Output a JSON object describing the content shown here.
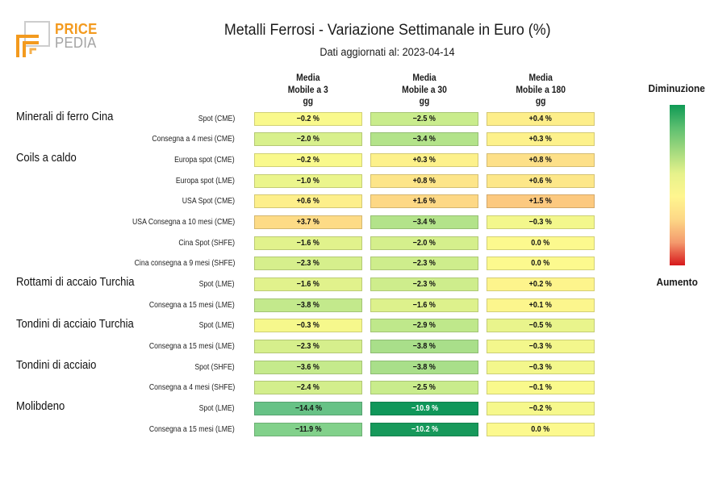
{
  "logo": {
    "line1": "PRICE",
    "line2": "PEDIA"
  },
  "chart_data": {
    "type": "heatmap",
    "title": "Metalli Ferrosi - Variazione Settimanale in Euro (%)",
    "subtitle": "Dati aggiornati al: 2023-04-14",
    "columns": [
      "Media\nMobile a 3\ngg",
      "Media\nMobile a 30\ngg",
      "Media\nMobile a 180\ngg"
    ],
    "legend": {
      "position": "right",
      "top_label": "Diminuzione",
      "bottom_label": "Aumento",
      "gradient": [
        "#0f9a55",
        "#5dbf70",
        "#a2d97e",
        "#e6f28b",
        "#fff68f",
        "#fdd786",
        "#f49a6d",
        "#d7191c"
      ]
    },
    "groups": [
      {
        "name": "Minerali di ferro Cina",
        "rows": [
          {
            "label": "Spot (CME)",
            "cells": [
              {
                "label": "−0.2 %",
                "value": -0.2,
                "color": "#f9f98c"
              },
              {
                "label": "−2.5 %",
                "value": -2.5,
                "color": "#c9ec8c"
              },
              {
                "label": "+0.4 %",
                "value": 0.4,
                "color": "#fdee8a"
              }
            ]
          },
          {
            "label": "Consegna a 4 mesi (CME)",
            "cells": [
              {
                "label": "−2.0 %",
                "value": -2.0,
                "color": "#d8f08c"
              },
              {
                "label": "−3.4 %",
                "value": -3.4,
                "color": "#b3e38a"
              },
              {
                "label": "+0.3 %",
                "value": 0.3,
                "color": "#fdf18b"
              }
            ]
          }
        ]
      },
      {
        "name": "Coils a caldo",
        "rows": [
          {
            "label": "Europa spot (CME)",
            "cells": [
              {
                "label": "−0.2 %",
                "value": -0.2,
                "color": "#f9f98c"
              },
              {
                "label": "+0.3 %",
                "value": 0.3,
                "color": "#fdf18b"
              },
              {
                "label": "+0.8 %",
                "value": 0.8,
                "color": "#fde088"
              }
            ]
          },
          {
            "label": "Europa spot (LME)",
            "cells": [
              {
                "label": "−1.0 %",
                "value": -1.0,
                "color": "#ebf58c"
              },
              {
                "label": "+0.8 %",
                "value": 0.8,
                "color": "#fde589"
              },
              {
                "label": "+0.6 %",
                "value": 0.6,
                "color": "#fde789"
              }
            ]
          },
          {
            "label": "USA Spot (CME)",
            "cells": [
              {
                "label": "+0.6 %",
                "value": 0.6,
                "color": "#fdef8b"
              },
              {
                "label": "+1.6 %",
                "value": 1.6,
                "color": "#fdd885"
              },
              {
                "label": "+1.5 %",
                "value": 1.5,
                "color": "#fcc97f"
              }
            ]
          },
          {
            "label": "USA Consegna a 10 mesi (CME)",
            "cells": [
              {
                "label": "+3.7 %",
                "value": 3.7,
                "color": "#fddb86"
              },
              {
                "label": "−3.4 %",
                "value": -3.4,
                "color": "#b3e38a"
              },
              {
                "label": "−0.3 %",
                "value": -0.3,
                "color": "#f3f78c"
              }
            ]
          },
          {
            "label": "Cina Spot (SHFE)",
            "cells": [
              {
                "label": "−1.6 %",
                "value": -1.6,
                "color": "#e1f28c"
              },
              {
                "label": "−2.0 %",
                "value": -2.0,
                "color": "#d5ef8c"
              },
              {
                "label": "0.0 %",
                "value": 0.0,
                "color": "#fcf98e"
              }
            ]
          },
          {
            "label": "Cina consegna a 9 mesi (SHFE)",
            "cells": [
              {
                "label": "−2.3 %",
                "value": -2.3,
                "color": "#d6ef8c"
              },
              {
                "label": "−2.3 %",
                "value": -2.3,
                "color": "#ceed8c"
              },
              {
                "label": "0.0 %",
                "value": 0.0,
                "color": "#fcf98e"
              }
            ]
          }
        ]
      },
      {
        "name": "Rottami di accaio Turchia",
        "rows": [
          {
            "label": "Spot (LME)",
            "cells": [
              {
                "label": "−1.6 %",
                "value": -1.6,
                "color": "#e1f28c"
              },
              {
                "label": "−2.3 %",
                "value": -2.3,
                "color": "#ceed8c"
              },
              {
                "label": "+0.2 %",
                "value": 0.2,
                "color": "#fdf48c"
              }
            ]
          },
          {
            "label": "Consegna a 15 mesi (LME)",
            "cells": [
              {
                "label": "−3.8 %",
                "value": -3.8,
                "color": "#c3e98c"
              },
              {
                "label": "−1.6 %",
                "value": -1.6,
                "color": "#ddf18c"
              },
              {
                "label": "+0.1 %",
                "value": 0.1,
                "color": "#fcf68d"
              }
            ]
          }
        ]
      },
      {
        "name": "Tondini di acciaio Turchia",
        "rows": [
          {
            "label": "Spot (LME)",
            "cells": [
              {
                "label": "−0.3 %",
                "value": -0.3,
                "color": "#f6f88c"
              },
              {
                "label": "−2.9 %",
                "value": -2.9,
                "color": "#bfe88b"
              },
              {
                "label": "−0.5 %",
                "value": -0.5,
                "color": "#e9f48c"
              }
            ]
          },
          {
            "label": "Consegna a 15 mesi (LME)",
            "cells": [
              {
                "label": "−2.3 %",
                "value": -2.3,
                "color": "#d6ef8c"
              },
              {
                "label": "−3.8 %",
                "value": -3.8,
                "color": "#a9df8a"
              },
              {
                "label": "−0.3 %",
                "value": -0.3,
                "color": "#f3f78c"
              }
            ]
          }
        ]
      },
      {
        "name": "Tondini di acciaio",
        "rows": [
          {
            "label": "Spot (SHFE)",
            "cells": [
              {
                "label": "−3.6 %",
                "value": -3.6,
                "color": "#c5ea8c"
              },
              {
                "label": "−3.8 %",
                "value": -3.8,
                "color": "#a9df8a"
              },
              {
                "label": "−0.3 %",
                "value": -0.3,
                "color": "#f3f78c"
              }
            ]
          },
          {
            "label": "Consegna a 4 mesi (SHFE)",
            "cells": [
              {
                "label": "−2.4 %",
                "value": -2.4,
                "color": "#d3ee8c"
              },
              {
                "label": "−2.5 %",
                "value": -2.5,
                "color": "#c9ec8c"
              },
              {
                "label": "−0.1 %",
                "value": -0.1,
                "color": "#f9f98c"
              }
            ]
          }
        ]
      },
      {
        "name": "Molibdeno",
        "rows": [
          {
            "label": "Spot (LME)",
            "cells": [
              {
                "label": "−14.4 %",
                "value": -14.4,
                "color": "#67c286"
              },
              {
                "label": "−10.9 %",
                "value": -10.9,
                "color": "#10975a",
                "text_color": "#ffffff"
              },
              {
                "label": "−0.2 %",
                "value": -0.2,
                "color": "#f6f88c"
              }
            ]
          },
          {
            "label": "Consegna a 15 mesi (LME)",
            "cells": [
              {
                "label": "−11.9 %",
                "value": -11.9,
                "color": "#82d18b"
              },
              {
                "label": "−10.2 %",
                "value": -10.2,
                "color": "#17995b",
                "text_color": "#ffffff"
              },
              {
                "label": "0.0 %",
                "value": 0.0,
                "color": "#fcf98e"
              }
            ]
          }
        ]
      }
    ]
  }
}
